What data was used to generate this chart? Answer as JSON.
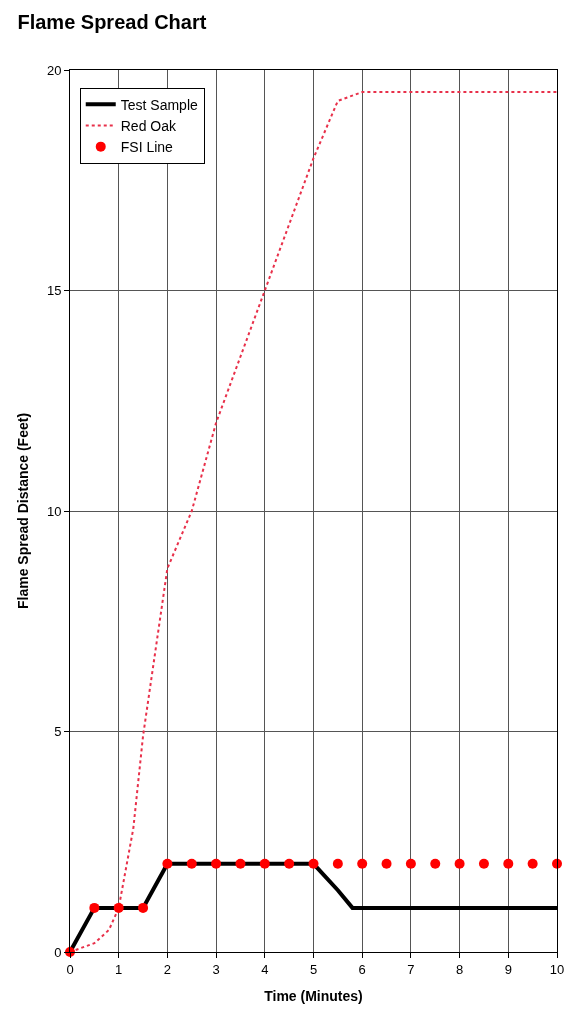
{
  "chart_data": {
    "type": "line",
    "title": "Flame Spread Chart",
    "xlabel": "Time (Minutes)",
    "ylabel": "Flame Spread Distance (Feet)",
    "xlim": [
      0,
      10
    ],
    "xticks": [
      0,
      1,
      2,
      3,
      4,
      5,
      6,
      7,
      8,
      9,
      10
    ],
    "ylim": [
      0,
      20
    ],
    "yticks": [
      0,
      5,
      10,
      15,
      20
    ],
    "grid": true,
    "legend": "top left",
    "series": [
      {
        "name": "Test Sample",
        "color": "#000000",
        "line_style": "solid",
        "marker": "none",
        "x": [
          0,
          0.5,
          1,
          1.5,
          2,
          2.5,
          3,
          4,
          5,
          5.5,
          5.8,
          6,
          7,
          8,
          9,
          10
        ],
        "values": [
          0,
          1,
          1,
          1,
          2,
          2,
          2,
          2,
          2,
          1.4,
          1,
          1,
          1,
          1,
          1,
          1
        ]
      },
      {
        "name": "Red Oak",
        "color": "#e8304a",
        "line_style": "dotted",
        "marker": "none",
        "x": [
          0,
          0.5,
          0.8,
          1,
          1.3,
          1.5,
          2,
          2.5,
          3,
          4,
          5,
          5.5,
          6,
          7,
          8,
          9,
          10
        ],
        "values": [
          0,
          0.2,
          0.5,
          1,
          2.8,
          4.9,
          8.7,
          10,
          12,
          15,
          18,
          19.3,
          19.5,
          19.5,
          19.5,
          19.5,
          19.5
        ]
      },
      {
        "name": "FSI Line",
        "type": "scatter",
        "color": "#ff0000",
        "marker": "circle",
        "x": [
          0,
          0.5,
          1,
          1.5,
          2,
          2.5,
          3,
          3.5,
          4,
          4.5,
          5,
          5.5,
          6,
          6.5,
          7,
          7.5,
          8,
          8.5,
          9,
          9.5,
          10
        ],
        "values": [
          0,
          1,
          1,
          1,
          2,
          2,
          2,
          2,
          2,
          2,
          2,
          2,
          2,
          2,
          2,
          2,
          2,
          2,
          2,
          2,
          2
        ]
      }
    ]
  }
}
